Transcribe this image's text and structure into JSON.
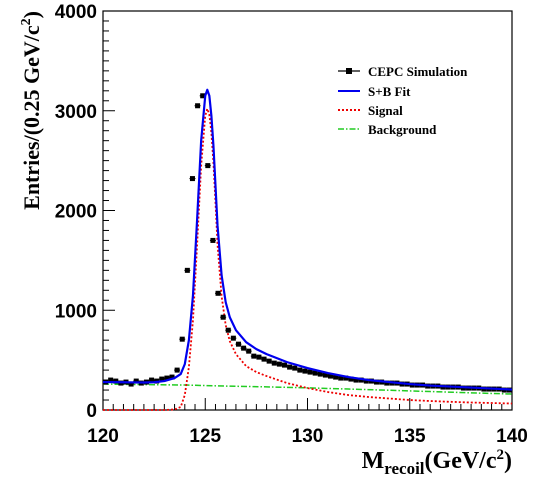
{
  "chart_data": {
    "type": "line",
    "xlabel_main": "M",
    "xlabel_sub": "recoil",
    "xlabel_rest": "(GeV/c",
    "xlabel_sup": "2",
    "xlabel_close": ")",
    "ylabel_main": "Entries/(0.25 GeV/c",
    "ylabel_sup": "2",
    "ylabel_close": ")",
    "xlim": [
      120,
      140
    ],
    "ylim": [
      0,
      4000
    ],
    "xticks": [
      "120",
      "125",
      "130",
      "135",
      "140"
    ],
    "yticks": [
      "0",
      "1000",
      "2000",
      "3000",
      "4000"
    ],
    "legend_position": "top-right",
    "legend": [
      {
        "label": "CEPC Simulation",
        "color": "#000000",
        "style": "marker"
      },
      {
        "label": "S+B Fit",
        "color": "#0000ee",
        "style": "solid"
      },
      {
        "label": "Signal",
        "color": "#ee0000",
        "style": "dotted"
      },
      {
        "label": "Background",
        "color": "#22cc22",
        "style": "dashdot"
      }
    ],
    "series": [
      {
        "name": "CEPC Simulation",
        "kind": "points",
        "x": [
          120.125,
          120.375,
          120.625,
          120.875,
          121.125,
          121.375,
          121.625,
          121.875,
          122.125,
          122.375,
          122.625,
          122.875,
          123.125,
          123.375,
          123.625,
          123.875,
          124.125,
          124.375,
          124.625,
          124.875,
          125.125,
          125.375,
          125.625,
          125.875,
          126.125,
          126.375,
          126.625,
          126.875,
          127.125,
          127.375,
          127.625,
          127.875,
          128.125,
          128.375,
          128.625,
          128.875,
          129.125,
          129.375,
          129.625,
          129.875,
          130.125,
          130.375,
          130.625,
          130.875,
          131.125,
          131.375,
          131.625,
          131.875,
          132.125,
          132.375,
          132.625,
          132.875,
          133.125,
          133.375,
          133.625,
          133.875,
          134.125,
          134.375,
          134.625,
          134.875,
          135.125,
          135.375,
          135.625,
          135.875,
          136.125,
          136.375,
          136.625,
          136.875,
          137.125,
          137.375,
          137.625,
          137.875,
          138.125,
          138.375,
          138.625,
          138.875,
          139.125,
          139.375,
          139.625,
          139.875
        ],
        "y": [
          280,
          300,
          290,
          270,
          280,
          260,
          290,
          270,
          280,
          300,
          290,
          310,
          320,
          330,
          400,
          710,
          1400,
          2320,
          3050,
          3150,
          2450,
          1700,
          1170,
          930,
          800,
          720,
          660,
          620,
          590,
          540,
          530,
          510,
          490,
          470,
          460,
          450,
          430,
          420,
          400,
          390,
          380,
          370,
          360,
          350,
          340,
          330,
          320,
          320,
          310,
          300,
          300,
          290,
          290,
          280,
          280,
          270,
          270,
          270,
          260,
          260,
          250,
          250,
          250,
          240,
          240,
          240,
          230,
          230,
          230,
          230,
          220,
          220,
          220,
          220,
          210,
          210,
          210,
          210,
          200,
          200
        ]
      },
      {
        "name": "S+B Fit",
        "kind": "solid",
        "x": [
          120,
          121,
          122,
          122.5,
          123,
          123.5,
          123.8,
          124,
          124.2,
          124.4,
          124.6,
          124.8,
          125,
          125.1,
          125.2,
          125.3,
          125.4,
          125.5,
          125.6,
          125.8,
          126,
          126.2,
          126.5,
          127,
          127.5,
          128,
          129,
          130,
          131,
          132,
          133,
          134,
          135,
          136,
          137,
          138,
          139,
          140
        ],
        "y": [
          280,
          278,
          276,
          278,
          290,
          320,
          360,
          460,
          700,
          1150,
          1900,
          2700,
          3150,
          3210,
          3150,
          2950,
          2650,
          2250,
          1850,
          1350,
          1080,
          930,
          800,
          680,
          610,
          560,
          480,
          420,
          370,
          330,
          300,
          280,
          260,
          245,
          235,
          225,
          215,
          205
        ]
      },
      {
        "name": "Signal",
        "kind": "dotted",
        "x": [
          120,
          122,
          123,
          123.5,
          123.8,
          124,
          124.2,
          124.4,
          124.6,
          124.8,
          125,
          125.1,
          125.2,
          125.3,
          125.4,
          125.5,
          125.6,
          125.8,
          126,
          126.2,
          126.5,
          127,
          127.5,
          128,
          129,
          130,
          131,
          132,
          133,
          134,
          135,
          136,
          137,
          138,
          139,
          140
        ],
        "y": [
          0,
          0,
          0,
          5,
          30,
          150,
          430,
          900,
          1650,
          2450,
          2950,
          3020,
          2960,
          2780,
          2480,
          2080,
          1660,
          1140,
          850,
          690,
          560,
          440,
          380,
          340,
          270,
          220,
          180,
          150,
          130,
          115,
          100,
          90,
          82,
          75,
          70,
          65
        ]
      },
      {
        "name": "Background",
        "kind": "dashdot",
        "x": [
          120,
          122,
          124,
          126,
          128,
          130,
          132,
          134,
          136,
          138,
          140
        ],
        "y": [
          260,
          255,
          250,
          240,
          232,
          222,
          210,
          198,
          185,
          172,
          160
        ]
      }
    ]
  }
}
